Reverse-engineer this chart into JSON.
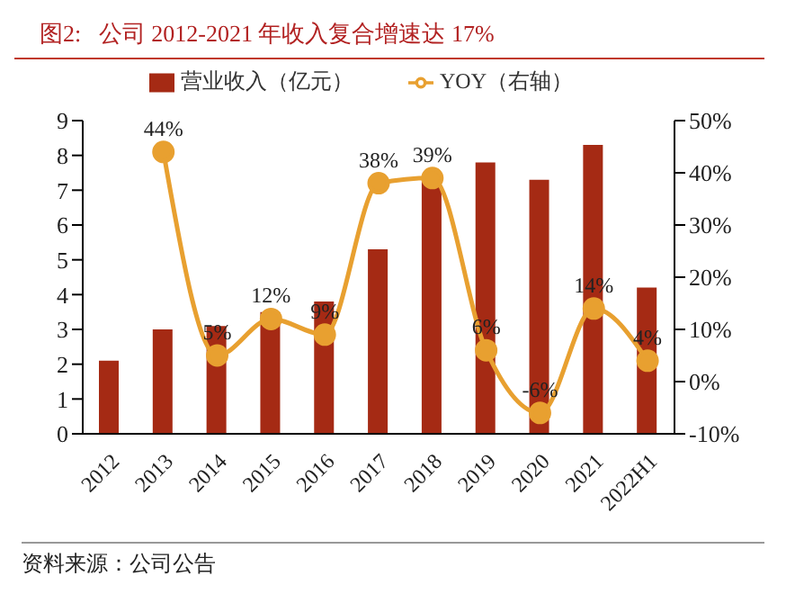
{
  "chart_data": {
    "type": "bar",
    "title": "图2:   公司 2012-2021 年收入复合增速达 17%",
    "categories": [
      "2012",
      "2013",
      "2014",
      "2015",
      "2016",
      "2017",
      "2018",
      "2019",
      "2020",
      "2021",
      "2022H1"
    ],
    "series": [
      {
        "name": "营业收入（亿元）",
        "color": "#a52a14",
        "values": [
          2.1,
          3.0,
          3.1,
          3.5,
          3.8,
          5.3,
          7.3,
          7.8,
          7.3,
          8.3,
          4.2
        ]
      },
      {
        "name": "YOY（右轴）",
        "type": "line",
        "axis": "y2",
        "color": "#e8a030",
        "values": [
          null,
          44,
          5,
          12,
          9,
          38,
          39,
          6,
          -6,
          14,
          4
        ],
        "value_labels": [
          null,
          "44%",
          "5%",
          "12%",
          "9%",
          "38%",
          "39%",
          "6%",
          "-6%",
          "14%",
          "4%"
        ]
      }
    ],
    "ylim": [
      0,
      9
    ],
    "yticks": [
      0,
      1,
      2,
      3,
      4,
      5,
      6,
      7,
      8,
      9
    ],
    "y2lim": [
      -10,
      50
    ],
    "y2ticks": [
      {
        "value": -10,
        "label": "-10%"
      },
      {
        "value": 0,
        "label": "0%"
      },
      {
        "value": 10,
        "label": "10%"
      },
      {
        "value": 20,
        "label": "20%"
      },
      {
        "value": 30,
        "label": "30%"
      },
      {
        "value": 40,
        "label": "40%"
      },
      {
        "value": 50,
        "label": "50%"
      }
    ],
    "grid": false,
    "legend": "top",
    "marker": "circle",
    "line_style": "solid",
    "annotations": [
      "资料来源：公司公告"
    ]
  }
}
